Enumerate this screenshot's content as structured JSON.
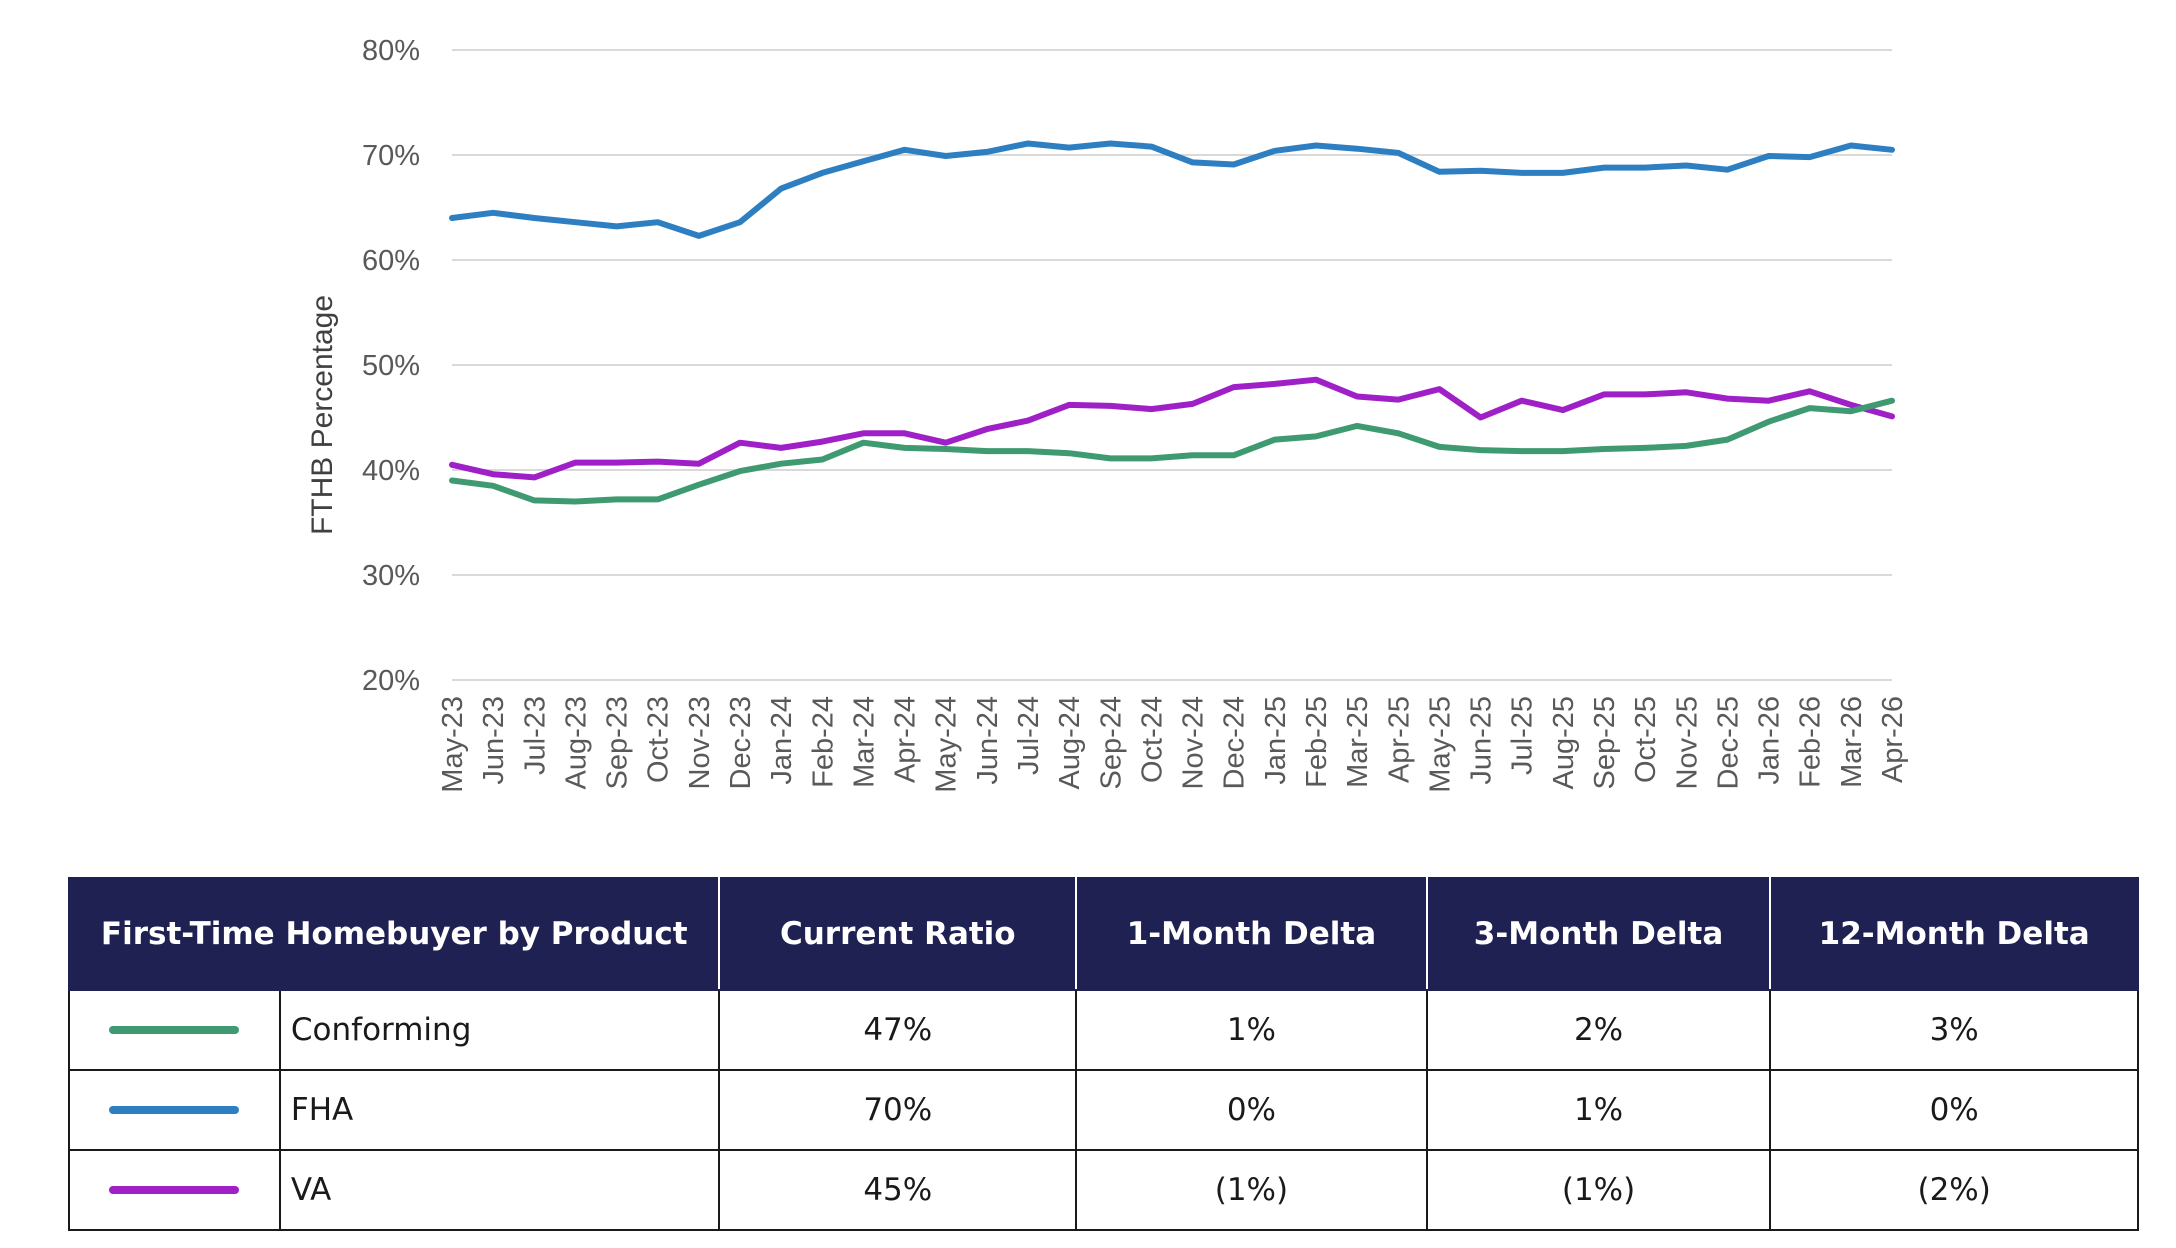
{
  "chart_data": {
    "type": "line",
    "ylabel": "FTHB Percentage",
    "ylim": [
      20,
      80
    ],
    "yticks": [
      20,
      30,
      40,
      50,
      60,
      70,
      80
    ],
    "ytick_suffix": "%",
    "grid": "horizontal",
    "categories": [
      "May-23",
      "Jun-23",
      "Jul-23",
      "Aug-23",
      "Sep-23",
      "Oct-23",
      "Nov-23",
      "Dec-23",
      "Jan-24",
      "Feb-24",
      "Mar-24",
      "Apr-24",
      "May-24",
      "Jun-24",
      "Jul-24",
      "Aug-24",
      "Sep-24",
      "Oct-24",
      "Nov-24",
      "Dec-24",
      "Jan-25",
      "Feb-25",
      "Mar-25",
      "Apr-25",
      "May-25",
      "Jun-25",
      "Jul-25",
      "Aug-25",
      "Sep-25",
      "Oct-25",
      "Nov-25",
      "Dec-25",
      "Jan-26",
      "Feb-26",
      "Mar-26",
      "Apr-26"
    ],
    "series": [
      {
        "name": "FHA",
        "color": "#2e7fc2",
        "values": [
          64.0,
          64.5,
          64.0,
          63.6,
          63.2,
          63.6,
          62.3,
          63.6,
          66.8,
          68.3,
          69.4,
          70.5,
          69.9,
          70.3,
          71.1,
          70.7,
          71.1,
          70.8,
          69.3,
          69.1,
          70.4,
          70.9,
          70.6,
          70.2,
          68.4,
          68.5,
          68.3,
          68.3,
          68.8,
          68.8,
          69.0,
          68.6,
          69.9,
          69.8,
          70.9,
          70.5
        ]
      },
      {
        "name": "VA",
        "color": "#a020c8",
        "values": [
          40.5,
          39.6,
          39.3,
          40.7,
          40.7,
          40.8,
          40.6,
          42.6,
          42.1,
          42.7,
          43.5,
          43.5,
          42.6,
          43.9,
          44.7,
          46.2,
          46.1,
          45.8,
          46.3,
          47.9,
          48.2,
          48.6,
          47.0,
          46.7,
          47.7,
          45.0,
          46.6,
          45.7,
          47.2,
          47.2,
          47.4,
          46.8,
          46.6,
          47.5,
          46.2,
          45.1
        ]
      },
      {
        "name": "Conforming",
        "color": "#3f9a72",
        "values": [
          39.0,
          38.5,
          37.1,
          37.0,
          37.2,
          37.2,
          38.6,
          39.9,
          40.6,
          41.0,
          42.6,
          42.1,
          42.0,
          41.8,
          41.8,
          41.6,
          41.1,
          41.1,
          41.4,
          41.4,
          42.9,
          43.2,
          44.2,
          43.5,
          42.2,
          41.9,
          41.8,
          41.8,
          42.0,
          42.1,
          42.3,
          42.9,
          44.6,
          45.9,
          45.6,
          46.6
        ]
      }
    ]
  },
  "table": {
    "headers": [
      "First-Time Homebuyer by Product",
      "Current Ratio",
      "1-Month Delta",
      "3-Month Delta",
      "12-Month Delta"
    ],
    "rows": [
      {
        "swatch_color": "#3f9a72",
        "product": "Conforming",
        "current": "47%",
        "d1": "1%",
        "d3": "2%",
        "d12": "3%"
      },
      {
        "swatch_color": "#2e7fc2",
        "product": "FHA",
        "current": "70%",
        "d1": "0%",
        "d3": "1%",
        "d12": "0%"
      },
      {
        "swatch_color": "#a020c8",
        "product": "VA",
        "current": "45%",
        "d1": "(1%)",
        "d3": "(1%)",
        "d12": "(2%)"
      }
    ]
  }
}
